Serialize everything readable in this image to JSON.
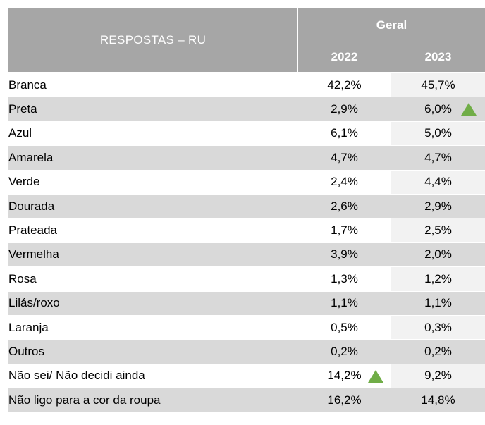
{
  "header": {
    "col_label": "RESPOSTAS  – RU",
    "group": "Geral",
    "years": [
      "2022",
      "2023"
    ]
  },
  "colors": {
    "header_bg": "#a6a6a6",
    "band": "#d9d9d9",
    "up_marker": "#70ad47"
  },
  "rows": [
    {
      "label": "Branca",
      "v2022": "42,2%",
      "v2023": "45,7%",
      "up2022": false,
      "up2023": false
    },
    {
      "label": "Preta",
      "v2022": "2,9%",
      "v2023": "6,0%",
      "up2022": false,
      "up2023": true
    },
    {
      "label": "Azul",
      "v2022": "6,1%",
      "v2023": "5,0%",
      "up2022": false,
      "up2023": false
    },
    {
      "label": "Amarela",
      "v2022": "4,7%",
      "v2023": "4,7%",
      "up2022": false,
      "up2023": false
    },
    {
      "label": "Verde",
      "v2022": "2,4%",
      "v2023": "4,4%",
      "up2022": false,
      "up2023": false
    },
    {
      "label": "Dourada",
      "v2022": "2,6%",
      "v2023": "2,9%",
      "up2022": false,
      "up2023": false
    },
    {
      "label": "Prateada",
      "v2022": "1,7%",
      "v2023": "2,5%",
      "up2022": false,
      "up2023": false
    },
    {
      "label": "Vermelha",
      "v2022": "3,9%",
      "v2023": "2,0%",
      "up2022": false,
      "up2023": false
    },
    {
      "label": "Rosa",
      "v2022": "1,3%",
      "v2023": "1,2%",
      "up2022": false,
      "up2023": false
    },
    {
      "label": "Lilás/roxo",
      "v2022": "1,1%",
      "v2023": "1,1%",
      "up2022": false,
      "up2023": false
    },
    {
      "label": "Laranja",
      "v2022": "0,5%",
      "v2023": "0,3%",
      "up2022": false,
      "up2023": false
    },
    {
      "label": "Outros",
      "v2022": "0,2%",
      "v2023": "0,2%",
      "up2022": false,
      "up2023": false
    },
    {
      "label": "Não sei/ Não decidi ainda",
      "v2022": "14,2%",
      "v2023": "9,2%",
      "up2022": true,
      "up2023": false
    },
    {
      "label": "Não ligo para a cor da roupa",
      "v2022": "16,2%",
      "v2023": "14,8%",
      "up2022": false,
      "up2023": false
    }
  ],
  "chart_data": {
    "type": "table",
    "columns": [
      "RESPOSTAS  – RU",
      "2022",
      "2023"
    ],
    "group_header": "Geral",
    "categories": [
      "Branca",
      "Preta",
      "Azul",
      "Amarela",
      "Verde",
      "Dourada",
      "Prateada",
      "Vermelha",
      "Rosa",
      "Lilás/roxo",
      "Laranja",
      "Outros",
      "Não sei/ Não decidi ainda",
      "Não ligo para a cor da roupa"
    ],
    "series": [
      {
        "name": "2022",
        "values": [
          42.2,
          2.9,
          6.1,
          4.7,
          2.4,
          2.6,
          1.7,
          3.9,
          1.3,
          1.1,
          0.5,
          0.2,
          14.2,
          16.2
        ]
      },
      {
        "name": "2023",
        "values": [
          45.7,
          6.0,
          5.0,
          4.7,
          4.4,
          2.9,
          2.5,
          2.0,
          1.2,
          1.1,
          0.3,
          0.2,
          9.2,
          14.8
        ]
      }
    ],
    "up_markers": [
      {
        "category": "Preta",
        "series": "2023"
      },
      {
        "category": "Não sei/ Não decidi ainda",
        "series": "2022"
      }
    ]
  }
}
